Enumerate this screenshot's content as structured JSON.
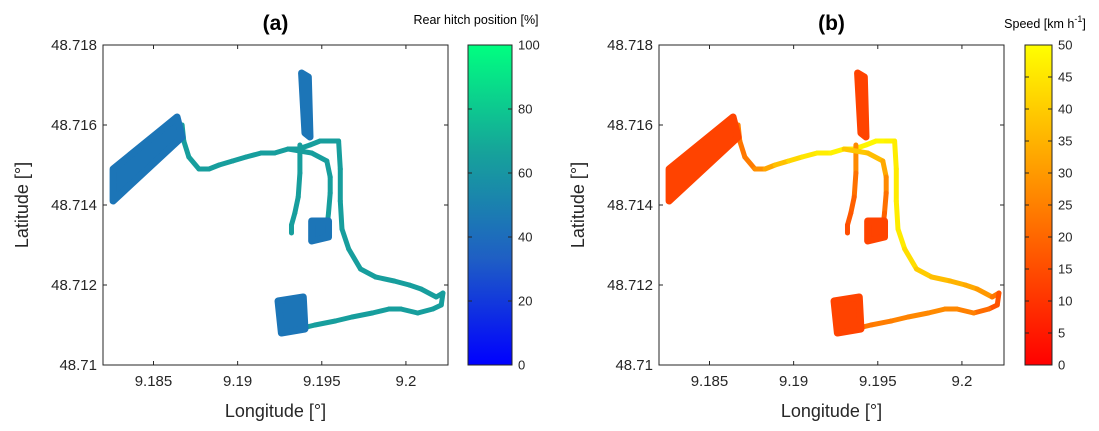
{
  "chart_data": [
    {
      "type": "scatter",
      "title": "(a)",
      "xlabel": "Longitude [°]",
      "ylabel": "Latitude [°]",
      "xlim": [
        9.182,
        9.2025
      ],
      "ylim": [
        48.71,
        48.718
      ],
      "xticks": [
        9.185,
        9.19,
        9.195,
        9.2
      ],
      "xtick_labels": [
        "9.185",
        "9.19",
        "9.195",
        "9.2"
      ],
      "yticks": [
        48.71,
        48.712,
        48.714,
        48.716,
        48.718
      ],
      "ytick_labels": [
        "48.71",
        "48.712",
        "48.714",
        "48.716",
        "48.718"
      ],
      "grid": false,
      "colorbar": {
        "label": "Rear hitch position [%]",
        "range": [
          0,
          100
        ],
        "ticks": [
          0,
          20,
          40,
          60,
          80,
          100
        ],
        "tick_labels": [
          "0",
          "20",
          "40",
          "60",
          "80",
          "100"
        ],
        "colors": [
          "#0000ff",
          "#1f5fc4",
          "#16a39a",
          "#00ff80"
        ]
      },
      "path_value": 64,
      "field_value": 44,
      "series": [
        {
          "kind": "path",
          "points": [
            [
              9.1826,
              48.7147
            ],
            [
              9.1834,
              48.7151
            ],
            [
              9.1848,
              48.7154
            ],
            [
              9.1858,
              48.7157
            ],
            [
              9.1867,
              48.716
            ],
            [
              9.1868,
              48.7156
            ],
            [
              9.1871,
              48.7152
            ],
            [
              9.1877,
              48.7149
            ],
            [
              9.1883,
              48.7149
            ],
            [
              9.1889,
              48.715
            ],
            [
              9.1897,
              48.7151
            ],
            [
              9.1905,
              48.7152
            ],
            [
              9.1914,
              48.7153
            ],
            [
              9.1922,
              48.7153
            ],
            [
              9.193,
              48.7154
            ],
            [
              9.1936,
              48.7154
            ],
            [
              9.1943,
              48.7155
            ],
            [
              9.1949,
              48.7156
            ],
            [
              9.1955,
              48.7156
            ],
            [
              9.196,
              48.7156
            ],
            [
              9.1961,
              48.7149
            ],
            [
              9.1961,
              48.7141
            ],
            [
              9.1962,
              48.7134
            ],
            [
              9.1966,
              48.7129
            ],
            [
              9.1973,
              48.7124
            ],
            [
              9.1982,
              48.7122
            ],
            [
              9.1993,
              48.7121
            ],
            [
              9.2002,
              48.712
            ],
            [
              9.2009,
              48.7119
            ],
            [
              9.2018,
              48.7117
            ],
            [
              9.2022,
              48.7118
            ],
            [
              9.2021,
              48.7115
            ],
            [
              9.2016,
              48.7114
            ],
            [
              9.2007,
              48.7113
            ],
            [
              9.1997,
              48.7114
            ],
            [
              9.199,
              48.7114
            ],
            [
              9.198,
              48.7113
            ],
            [
              9.1968,
              48.7112
            ],
            [
              9.1958,
              48.7111
            ],
            [
              9.1946,
              48.711
            ],
            [
              9.1936,
              48.7109
            ],
            [
              9.1928,
              48.7109
            ]
          ]
        },
        {
          "kind": "path",
          "points": [
            [
              9.1937,
              48.7155
            ],
            [
              9.1937,
              48.7148
            ],
            [
              9.1936,
              48.7142
            ],
            [
              9.1934,
              48.7138
            ],
            [
              9.1932,
              48.7135
            ],
            [
              9.1932,
              48.7133
            ]
          ]
        },
        {
          "kind": "path",
          "points": [
            [
              9.193,
              48.7154
            ],
            [
              9.1944,
              48.7153
            ],
            [
              9.1953,
              48.7151
            ],
            [
              9.1955,
              48.7147
            ],
            [
              9.1955,
              48.7143
            ],
            [
              9.1954,
              48.7138
            ],
            [
              9.1953,
              48.7134
            ],
            [
              9.195,
              48.7132
            ],
            [
              9.1946,
              48.7131
            ]
          ]
        },
        {
          "kind": "field",
          "points": [
            [
              9.1826,
              48.7149
            ],
            [
              9.1864,
              48.7162
            ],
            [
              9.1867,
              48.7157
            ],
            [
              9.1826,
              48.7141
            ]
          ]
        },
        {
          "kind": "field",
          "points": [
            [
              9.1938,
              48.7173
            ],
            [
              9.1942,
              48.7172
            ],
            [
              9.1943,
              48.7157
            ],
            [
              9.194,
              48.7158
            ]
          ]
        },
        {
          "kind": "field",
          "points": [
            [
              9.1944,
              48.7136
            ],
            [
              9.1954,
              48.7136
            ],
            [
              9.1954,
              48.7132
            ],
            [
              9.1944,
              48.7131
            ]
          ]
        },
        {
          "kind": "field",
          "points": [
            [
              9.1924,
              48.7116
            ],
            [
              9.1939,
              48.7117
            ],
            [
              9.194,
              48.7109
            ],
            [
              9.1926,
              48.7108
            ]
          ]
        }
      ]
    },
    {
      "type": "scatter",
      "title": "(b)",
      "xlabel": "Longitude [°]",
      "ylabel": "Latitude [°]",
      "xlim": [
        9.182,
        9.2025
      ],
      "ylim": [
        48.71,
        48.718
      ],
      "xticks": [
        9.185,
        9.19,
        9.195,
        9.2
      ],
      "xtick_labels": [
        "9.185",
        "9.19",
        "9.195",
        "9.2"
      ],
      "yticks": [
        48.71,
        48.712,
        48.714,
        48.716,
        48.718
      ],
      "ytick_labels": [
        "48.71",
        "48.712",
        "48.714",
        "48.716",
        "48.718"
      ],
      "grid": false,
      "colorbar": {
        "label": "Speed [km h",
        "label_sup": "-1",
        "label_end": "]",
        "range": [
          0,
          50
        ],
        "ticks": [
          0,
          5,
          10,
          15,
          20,
          25,
          30,
          35,
          40,
          45,
          50
        ],
        "tick_labels": [
          "0",
          "5",
          "10",
          "15",
          "20",
          "25",
          "30",
          "35",
          "40",
          "45",
          "50"
        ],
        "colors": [
          "#ff0000",
          "#ff8000",
          "#ffff00"
        ]
      },
      "path_value": 24,
      "field_value": 13,
      "series": [
        {
          "kind": "path",
          "points": [
            [
              9.1826,
              48.7147
            ],
            [
              9.1834,
              48.7151
            ],
            [
              9.1848,
              48.7154
            ],
            [
              9.1858,
              48.7157
            ],
            [
              9.1867,
              48.716
            ],
            [
              9.1868,
              48.7156
            ],
            [
              9.1871,
              48.7152
            ],
            [
              9.1877,
              48.7149
            ],
            [
              9.1883,
              48.7149
            ],
            [
              9.1889,
              48.715
            ],
            [
              9.1897,
              48.7151
            ],
            [
              9.1905,
              48.7152
            ],
            [
              9.1914,
              48.7153
            ],
            [
              9.1922,
              48.7153
            ],
            [
              9.193,
              48.7154
            ],
            [
              9.1936,
              48.7154
            ],
            [
              9.1943,
              48.7155
            ],
            [
              9.1949,
              48.7156
            ],
            [
              9.1955,
              48.7156
            ],
            [
              9.196,
              48.7156
            ],
            [
              9.1961,
              48.7149
            ],
            [
              9.1961,
              48.7141
            ],
            [
              9.1962,
              48.7134
            ],
            [
              9.1966,
              48.7129
            ],
            [
              9.1973,
              48.7124
            ],
            [
              9.1982,
              48.7122
            ],
            [
              9.1993,
              48.7121
            ],
            [
              9.2002,
              48.712
            ],
            [
              9.2009,
              48.7119
            ],
            [
              9.2018,
              48.7117
            ],
            [
              9.2022,
              48.7118
            ],
            [
              9.2021,
              48.7115
            ],
            [
              9.2016,
              48.7114
            ],
            [
              9.2007,
              48.7113
            ],
            [
              9.1997,
              48.7114
            ],
            [
              9.199,
              48.7114
            ],
            [
              9.198,
              48.7113
            ],
            [
              9.1968,
              48.7112
            ],
            [
              9.1958,
              48.7111
            ],
            [
              9.1946,
              48.711
            ],
            [
              9.1936,
              48.7109
            ],
            [
              9.1928,
              48.7109
            ]
          ],
          "values": [
            20,
            22,
            24,
            25,
            26,
            24,
            22,
            26,
            30,
            35,
            40,
            44,
            46,
            47,
            48,
            48,
            48,
            49,
            48,
            47,
            46,
            46,
            47,
            45,
            42,
            38,
            36,
            34,
            32,
            28,
            18,
            14,
            18,
            24,
            26,
            27,
            27,
            26,
            25,
            24,
            22,
            18
          ]
        },
        {
          "kind": "path",
          "points": [
            [
              9.1937,
              48.7155
            ],
            [
              9.1937,
              48.7148
            ],
            [
              9.1936,
              48.7142
            ],
            [
              9.1934,
              48.7138
            ],
            [
              9.1932,
              48.7135
            ],
            [
              9.1932,
              48.7133
            ]
          ],
          "values": [
            30,
            24,
            20,
            18,
            16,
            14
          ]
        },
        {
          "kind": "path",
          "points": [
            [
              9.193,
              48.7154
            ],
            [
              9.1944,
              48.7153
            ],
            [
              9.1953,
              48.7151
            ],
            [
              9.1955,
              48.7147
            ],
            [
              9.1955,
              48.7143
            ],
            [
              9.1954,
              48.7138
            ],
            [
              9.1953,
              48.7134
            ],
            [
              9.195,
              48.7132
            ],
            [
              9.1946,
              48.7131
            ]
          ],
          "values": [
            40,
            38,
            36,
            30,
            24,
            20,
            18,
            16,
            14
          ]
        },
        {
          "kind": "field",
          "points": [
            [
              9.1826,
              48.7149
            ],
            [
              9.1864,
              48.7162
            ],
            [
              9.1867,
              48.7157
            ],
            [
              9.1826,
              48.7141
            ]
          ]
        },
        {
          "kind": "field",
          "points": [
            [
              9.1938,
              48.7173
            ],
            [
              9.1942,
              48.7172
            ],
            [
              9.1943,
              48.7157
            ],
            [
              9.194,
              48.7158
            ]
          ]
        },
        {
          "kind": "field",
          "points": [
            [
              9.1944,
              48.7136
            ],
            [
              9.1954,
              48.7136
            ],
            [
              9.1954,
              48.7132
            ],
            [
              9.1944,
              48.7131
            ]
          ]
        },
        {
          "kind": "field",
          "points": [
            [
              9.1924,
              48.7116
            ],
            [
              9.1939,
              48.7117
            ],
            [
              9.194,
              48.7109
            ],
            [
              9.1926,
              48.7108
            ]
          ]
        }
      ]
    }
  ]
}
